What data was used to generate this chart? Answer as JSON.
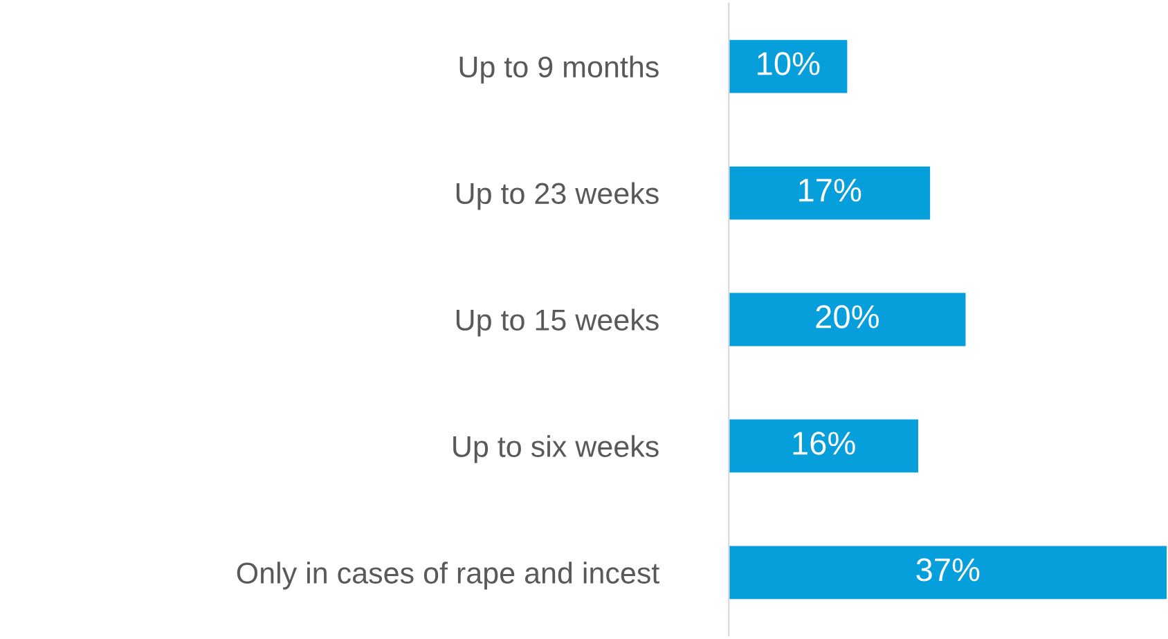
{
  "chart_data": {
    "type": "bar",
    "orientation": "horizontal",
    "categories": [
      "Up to 9 months",
      "Up to 23 weeks",
      "Up to 15 weeks",
      "Up to six weeks",
      "Only in cases of rape and incest"
    ],
    "values": [
      10,
      17,
      20,
      16,
      37
    ],
    "value_labels": [
      "10%",
      "17%",
      "20%",
      "16%",
      "37%"
    ],
    "color": "#069fdb",
    "grid": false,
    "legend": false
  }
}
